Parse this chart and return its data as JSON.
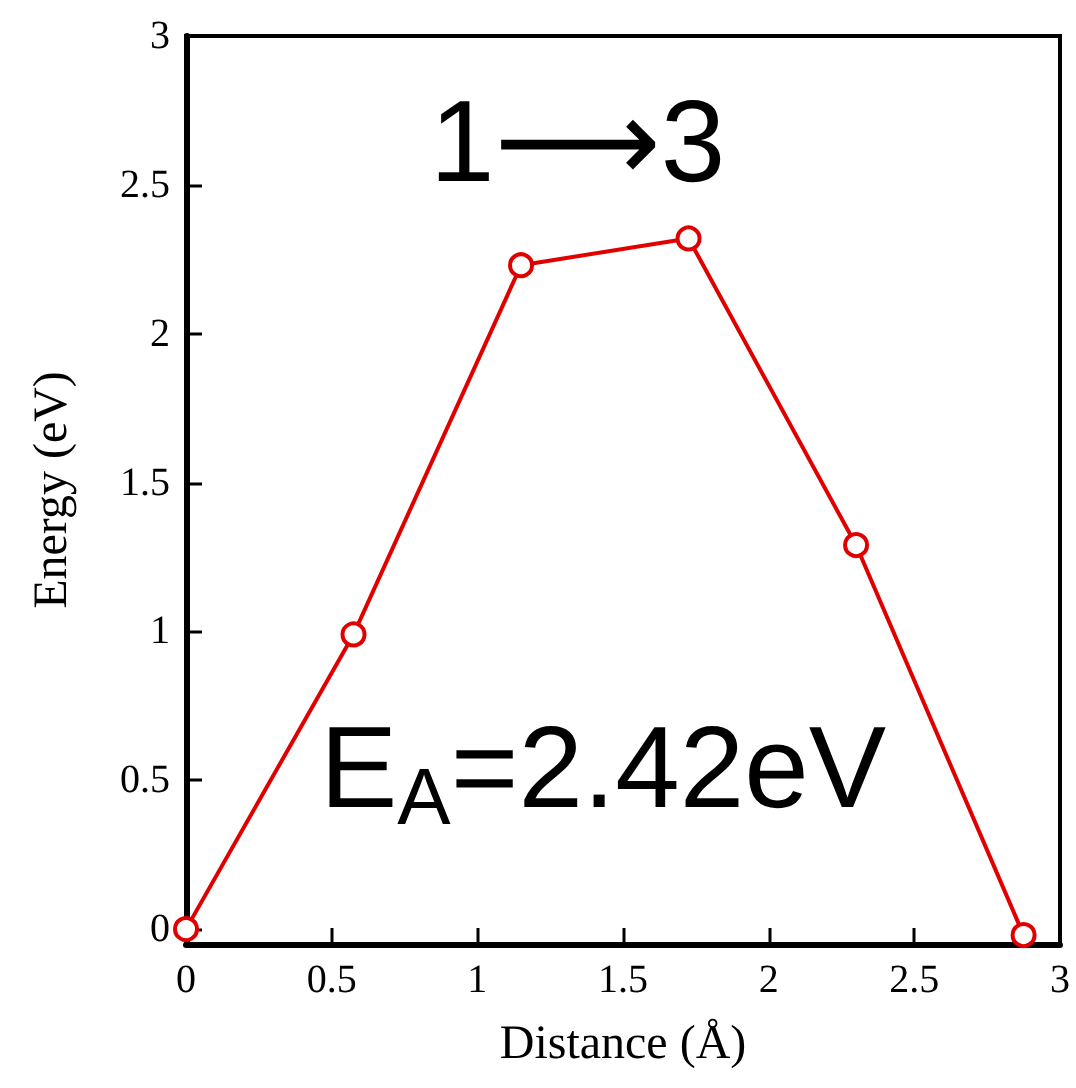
{
  "chart_data": {
    "type": "line",
    "xlabel": "Distance (Å)",
    "ylabel": "Energy (eV)",
    "x": [
      0,
      0.575,
      1.15,
      1.725,
      2.3,
      2.875
    ],
    "series": [
      {
        "color": "#e00000",
        "values": [
          0,
          0.99,
          2.23,
          2.32,
          1.29,
          -0.02
        ]
      }
    ],
    "xlim": [
      0,
      3
    ],
    "xticks": [
      0,
      0.5,
      1,
      1.5,
      2,
      2.5,
      3
    ],
    "ylim": [
      -0.05,
      3
    ],
    "yticks": [
      0,
      0.5,
      1,
      1.5,
      2,
      2.5,
      3
    ],
    "annotations": [
      "1⟶3",
      "E$_{A}$=2.42eV"
    ],
    "marker": "circle",
    "line_style": "solid"
  }
}
